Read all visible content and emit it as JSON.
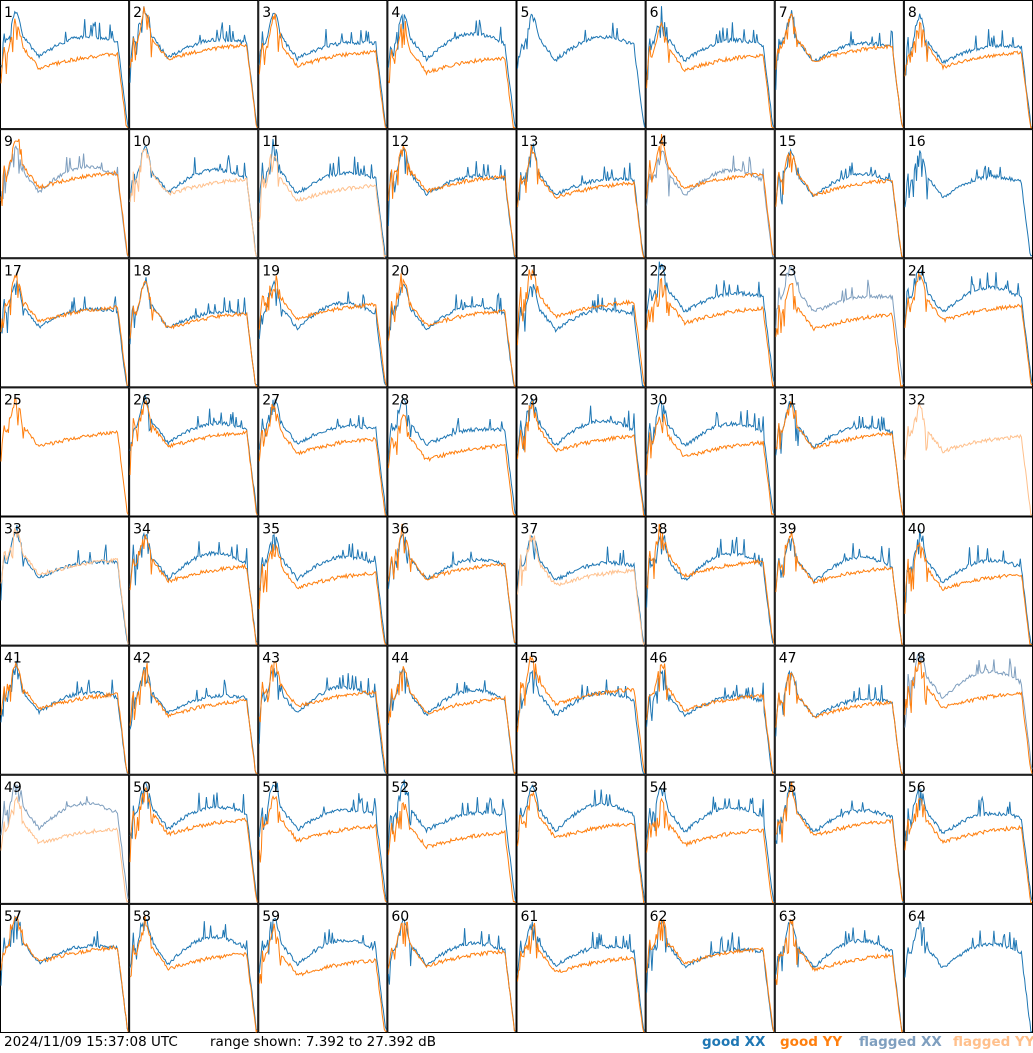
{
  "chart_data": {
    "type": "line",
    "panels": [
      "1",
      "2",
      "3",
      "4",
      "5",
      "6",
      "7",
      "8",
      "9",
      "10",
      "11",
      "12",
      "13",
      "14",
      "15",
      "16",
      "17",
      "18",
      "19",
      "20",
      "21",
      "22",
      "23",
      "24",
      "25",
      "26",
      "27",
      "28",
      "29",
      "30",
      "31",
      "32",
      "33",
      "34",
      "35",
      "36",
      "37",
      "38",
      "39",
      "40",
      "41",
      "42",
      "43",
      "44",
      "45",
      "46",
      "47",
      "48",
      "49",
      "50",
      "51",
      "52",
      "53",
      "54",
      "55",
      "56",
      "57",
      "58",
      "59",
      "60",
      "61",
      "62",
      "63",
      "64"
    ],
    "layout": {
      "columns": 8,
      "rows": 8
    },
    "series": [
      {
        "name": "good XX",
        "color": "#1f77b4"
      },
      {
        "name": "good YY",
        "color": "#ff7f0e"
      },
      {
        "name": "flagged XX",
        "color": "#7f9fbf"
      },
      {
        "name": "flagged YY",
        "color": "#ffc08c"
      }
    ],
    "ylim": [
      7.392,
      27.392
    ],
    "unit": "dB",
    "flagged_xx_tiles": [
      "9",
      "14",
      "23",
      "48",
      "49"
    ],
    "flagged_yy_tiles": [
      "10",
      "11",
      "32",
      "33",
      "37",
      "49"
    ],
    "xx_absent_tiles": [
      "25",
      "32"
    ],
    "yy_absent_tiles": [
      "5",
      "16",
      "64"
    ]
  },
  "footer": {
    "timestamp": "2024/11/09 15:37:08 UTC",
    "range_text": "range shown: 7.392 to 27.392 dB",
    "legend": {
      "good_xx": "good XX",
      "good_yy": "good YY",
      "flagged_xx": "flagged XX",
      "flagged_yy": "flagged YY"
    }
  }
}
